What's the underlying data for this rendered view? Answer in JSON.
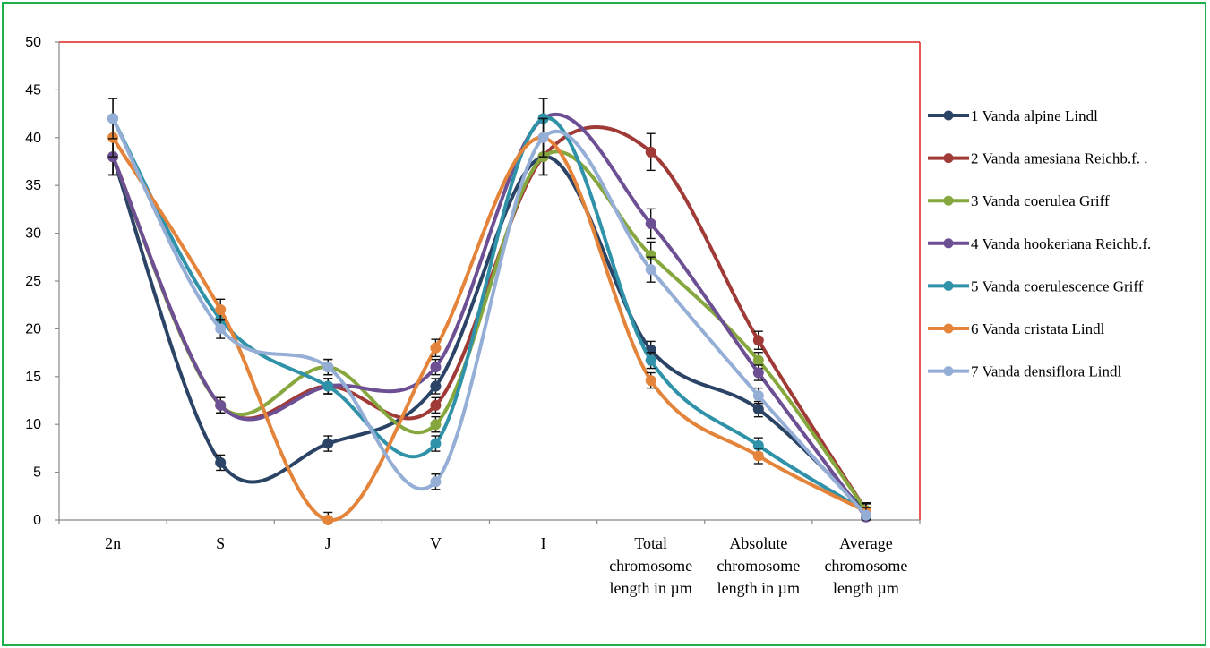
{
  "chart_data": {
    "type": "line",
    "categories": [
      [
        "2n"
      ],
      [
        "S"
      ],
      [
        "J"
      ],
      [
        "V"
      ],
      [
        "I"
      ],
      [
        "Total",
        "chromosome",
        "length in µm"
      ],
      [
        "Absolute",
        "chromosome",
        "length in µm"
      ],
      [
        "Average",
        "chromosome",
        "length µm"
      ]
    ],
    "ylim": [
      0,
      50
    ],
    "yticks": [
      0,
      5,
      10,
      15,
      20,
      25,
      30,
      35,
      40,
      45,
      50
    ],
    "grid": false,
    "legend_position": "right",
    "series": [
      {
        "name": "1 Vanda alpine  Lindl",
        "color": "#2b4466",
        "values": [
          38,
          6,
          8,
          14,
          38,
          17.8,
          11.6,
          0.9
        ]
      },
      {
        "name": "2 Vanda amesiana  Reichb.f.  .",
        "color": "#a03a37",
        "values": [
          38,
          12,
          14,
          12,
          38,
          38.5,
          18.8,
          1.0
        ]
      },
      {
        "name": "3 Vanda coerulea  Griff",
        "color": "#86a63e",
        "values": [
          38,
          12,
          16,
          10,
          38,
          27.7,
          16.7,
          1.0
        ]
      },
      {
        "name": "4 Vanda hookeriana  Reichb.f.",
        "color": "#6d4f94",
        "values": [
          38,
          12,
          14,
          16,
          42,
          31,
          15.4,
          0.3
        ]
      },
      {
        "name": "5 Vanda  coerulescence  Griff",
        "color": "#2f92a8",
        "values": [
          42,
          21,
          14,
          8,
          42,
          16.7,
          7.8,
          0.9
        ]
      },
      {
        "name": "6  Vanda cristata  Lindl",
        "color": "#e3843a",
        "values": [
          40,
          22,
          0,
          18,
          40,
          14.6,
          6.7,
          0.9
        ]
      },
      {
        "name": "7 Vanda  densiflora  Lindl",
        "color": "#95aed6",
        "values": [
          42,
          20,
          16,
          4,
          40,
          26.2,
          13,
          0.5
        ]
      }
    ]
  }
}
